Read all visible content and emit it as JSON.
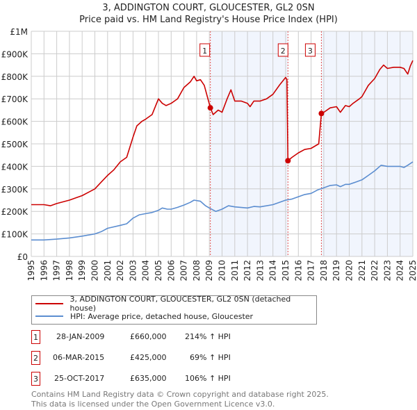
{
  "chart_data": {
    "type": "line",
    "title": "3, ADDINGTON COURT, GLOUCESTER, GL2 0SN",
    "subtitle": "Price paid vs. HM Land Registry's House Price Index (HPI)",
    "xlim": [
      1995,
      2025
    ],
    "ylim": [
      0,
      1000000
    ],
    "x_ticks": [
      "1995",
      "1996",
      "1997",
      "1998",
      "1999",
      "2000",
      "2001",
      "2002",
      "2003",
      "2004",
      "2005",
      "2006",
      "2007",
      "2008",
      "2009",
      "2010",
      "2011",
      "2012",
      "2013",
      "2014",
      "2015",
      "2016",
      "2017",
      "2018",
      "2019",
      "2020",
      "2021",
      "2022",
      "2023",
      "2024",
      "2025"
    ],
    "y_ticks": [
      {
        "v": 0,
        "label": "£0"
      },
      {
        "v": 100000,
        "label": "£100K"
      },
      {
        "v": 200000,
        "label": "£200K"
      },
      {
        "v": 300000,
        "label": "£300K"
      },
      {
        "v": 400000,
        "label": "£400K"
      },
      {
        "v": 500000,
        "label": "£500K"
      },
      {
        "v": 600000,
        "label": "£600K"
      },
      {
        "v": 700000,
        "label": "£700K"
      },
      {
        "v": 800000,
        "label": "£800K"
      },
      {
        "v": 900000,
        "label": "£900K"
      },
      {
        "v": 1000000,
        "label": "£1M"
      }
    ],
    "grid": true,
    "shaded_ranges": [
      [
        2009.08,
        2015.18
      ],
      [
        2017.81,
        2025
      ]
    ],
    "series": [
      {
        "name": "3, ADDINGTON COURT, GLOUCESTER, GL2 0SN (detached house)",
        "color": "#cc0000",
        "x": [
          1995,
          1996,
          1996.5,
          1997,
          1998,
          1998.5,
          1999,
          1999.5,
          2000,
          2000.5,
          2001,
          2001.5,
          2002,
          2002.5,
          2003,
          2003.3,
          2003.7,
          2004,
          2004.5,
          2005,
          2005.3,
          2005.6,
          2006,
          2006.5,
          2007,
          2007.5,
          2007.8,
          2008,
          2008.3,
          2008.6,
          2009.08,
          2009.3,
          2009.7,
          2010,
          2010.4,
          2010.7,
          2011,
          2011.5,
          2012,
          2012.2,
          2012.5,
          2013,
          2013.5,
          2014,
          2014.5,
          2015,
          2015.1,
          2015.18,
          2015.5,
          2016,
          2016.5,
          2017,
          2017.6,
          2017.81,
          2018,
          2018.5,
          2019,
          2019.3,
          2019.7,
          2020,
          2020.3,
          2020.8,
          2021,
          2021.5,
          2022,
          2022.4,
          2022.7,
          2023,
          2023.5,
          2024,
          2024.3,
          2024.6,
          2024.8,
          2025
        ],
        "values": [
          230000,
          230000,
          225000,
          235000,
          250000,
          260000,
          270000,
          285000,
          300000,
          330000,
          360000,
          385000,
          420000,
          440000,
          530000,
          580000,
          600000,
          610000,
          630000,
          700000,
          680000,
          670000,
          680000,
          700000,
          750000,
          775000,
          800000,
          780000,
          785000,
          760000,
          660000,
          630000,
          650000,
          640000,
          700000,
          740000,
          690000,
          690000,
          680000,
          665000,
          690000,
          690000,
          700000,
          720000,
          760000,
          795000,
          785000,
          425000,
          440000,
          460000,
          475000,
          480000,
          500000,
          635000,
          640000,
          660000,
          665000,
          640000,
          670000,
          665000,
          680000,
          700000,
          710000,
          760000,
          790000,
          830000,
          850000,
          835000,
          840000,
          840000,
          835000,
          810000,
          845000,
          870000
        ]
      },
      {
        "name": "HPI: Average price, detached house, Gloucester",
        "color": "#5b8dd0",
        "x": [
          1995,
          1996,
          1997,
          1998,
          1999,
          2000,
          2000.5,
          2001,
          2002,
          2002.5,
          2003,
          2003.5,
          2004,
          2004.5,
          2005,
          2005.3,
          2005.7,
          2006,
          2006.5,
          2007,
          2007.5,
          2007.8,
          2008.3,
          2008.7,
          2009,
          2009.5,
          2010,
          2010.5,
          2011,
          2012,
          2012.5,
          2013,
          2014,
          2014.5,
          2015,
          2015.5,
          2016,
          2016.5,
          2017,
          2017.5,
          2018,
          2018.5,
          2019,
          2019.3,
          2019.7,
          2020,
          2020.5,
          2021,
          2021.5,
          2022,
          2022.5,
          2023,
          2024,
          2024.3,
          2024.6,
          2025
        ],
        "values": [
          73000,
          73000,
          77000,
          82000,
          90000,
          100000,
          110000,
          125000,
          138000,
          145000,
          170000,
          185000,
          190000,
          195000,
          205000,
          215000,
          210000,
          210000,
          218000,
          228000,
          240000,
          250000,
          245000,
          225000,
          215000,
          200000,
          210000,
          225000,
          220000,
          215000,
          222000,
          220000,
          230000,
          240000,
          250000,
          255000,
          265000,
          275000,
          280000,
          295000,
          305000,
          315000,
          318000,
          310000,
          320000,
          320000,
          330000,
          340000,
          360000,
          380000,
          405000,
          400000,
          400000,
          395000,
          405000,
          420000
        ]
      }
    ],
    "sales": [
      {
        "id": "1",
        "x": 2009.08,
        "value": 660000,
        "date": "28-JAN-2009",
        "price": "£660,000",
        "hpi": "214% ↑ HPI"
      },
      {
        "id": "2",
        "x": 2015.18,
        "value": 425000,
        "date": "06-MAR-2015",
        "price": "£425,000",
        "hpi": "69% ↑ HPI"
      },
      {
        "id": "3",
        "x": 2017.81,
        "value": 635000,
        "date": "25-OCT-2017",
        "price": "£635,000",
        "hpi": "106% ↑ HPI"
      }
    ],
    "legend": "below"
  },
  "footer": {
    "line1": "Contains HM Land Registry data © Crown copyright and database right 2025.",
    "line2": "This data is licensed under the Open Government Licence v3.0."
  }
}
